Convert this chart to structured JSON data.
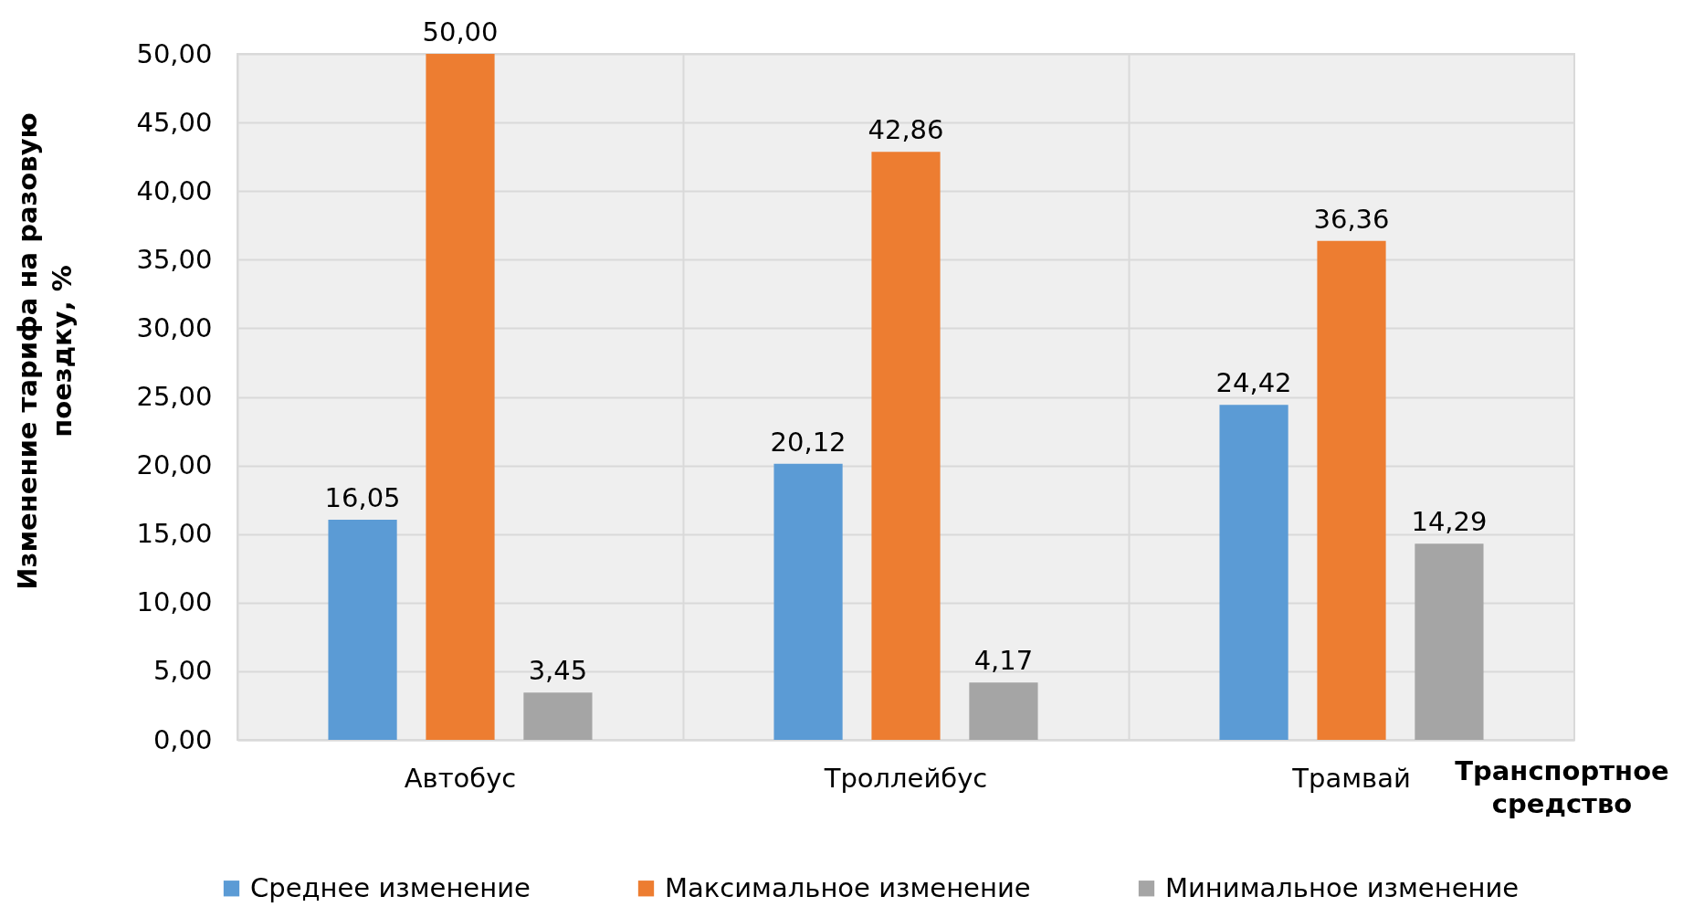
{
  "chart_data": {
    "type": "bar",
    "xlabel": "Транспортное средство",
    "ylabel": "Изменение тарифа на разовую поездку, %",
    "categories": [
      "Автобус",
      "Троллейбус",
      "Трамвай"
    ],
    "series": [
      {
        "name": "Среднее изменение",
        "color": "#5b9bd5",
        "values": [
          16.05,
          20.12,
          24.42
        ],
        "value_labels": [
          "16,05",
          "20,12",
          "24,42"
        ]
      },
      {
        "name": "Максимальное изменение",
        "color": "#ed7d31",
        "values": [
          50,
          42.86,
          36.36
        ],
        "value_labels": [
          "50,00",
          "42,86",
          "36,36"
        ]
      },
      {
        "name": "Минимальное изменение",
        "color": "#a5a5a5",
        "values": [
          3.45,
          4.17,
          14.29
        ],
        "value_labels": [
          "3,45",
          "4,17",
          "14,29"
        ]
      }
    ],
    "ylim": [
      0,
      50
    ],
    "yticks": [
      {
        "value": 0,
        "label": "0,00"
      },
      {
        "value": 5,
        "label": "5,00"
      },
      {
        "value": 10,
        "label": "10,00"
      },
      {
        "value": 15,
        "label": "15,00"
      },
      {
        "value": 20,
        "label": "20,00"
      },
      {
        "value": 25,
        "label": "25,00"
      },
      {
        "value": 30,
        "label": "30,00"
      },
      {
        "value": 35,
        "label": "35,00"
      },
      {
        "value": 40,
        "label": "40,00"
      },
      {
        "value": 45,
        "label": "45,00"
      },
      {
        "value": 50,
        "label": "50,00"
      }
    ],
    "grid": true,
    "legend": "bottom"
  }
}
